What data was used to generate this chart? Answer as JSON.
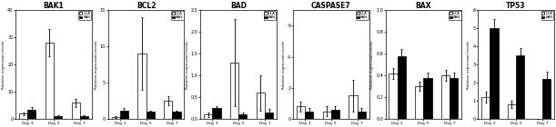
{
  "titles": [
    "BAK1",
    "BCL2",
    "BAD",
    "CASPASE7",
    "BAX",
    "TP53"
  ],
  "x_labels": [
    "Day 3",
    "Day 5",
    "Day 7"
  ],
  "legend_labels": [
    "ULA",
    "BAN"
  ],
  "bar_colors": [
    "white",
    "black"
  ],
  "bar_edgecolor": "black",
  "ylabel": "Relative expression levels",
  "panels": [
    {
      "title": "BAK1",
      "ylim": [
        0,
        40
      ],
      "yticks": [
        0,
        10,
        20,
        30,
        40
      ],
      "ula": [
        2.0,
        28.0,
        6.0
      ],
      "ban": [
        3.5,
        1.0,
        1.0
      ],
      "ula_err": [
        0.5,
        5.0,
        1.5
      ],
      "ban_err": [
        0.8,
        0.3,
        0.3
      ]
    },
    {
      "title": "BCL2",
      "ylim": [
        0,
        15
      ],
      "yticks": [
        0,
        5,
        10,
        15
      ],
      "ula": [
        0.3,
        9.0,
        2.5
      ],
      "ban": [
        1.2,
        1.0,
        1.0
      ],
      "ula_err": [
        0.1,
        5.0,
        0.6
      ],
      "ban_err": [
        0.3,
        0.2,
        0.2
      ]
    },
    {
      "title": "BAD",
      "ylim": [
        0,
        2.5
      ],
      "yticks": [
        0,
        0.5,
        1.0,
        1.5,
        2.0,
        2.5
      ],
      "ula": [
        0.1,
        1.3,
        0.6
      ],
      "ban": [
        0.25,
        0.1,
        0.15
      ],
      "ula_err": [
        0.05,
        1.0,
        0.4
      ],
      "ban_err": [
        0.05,
        0.05,
        0.08
      ]
    },
    {
      "title": "CASPASE7",
      "ylim": [
        0,
        7
      ],
      "yticks": [
        0,
        2,
        4,
        6
      ],
      "ula": [
        0.8,
        0.5,
        1.5
      ],
      "ban": [
        0.5,
        0.6,
        0.5
      ],
      "ula_err": [
        0.3,
        0.3,
        1.0
      ],
      "ban_err": [
        0.2,
        0.2,
        0.2
      ]
    },
    {
      "title": "BAX",
      "ylim": [
        0,
        1.0
      ],
      "yticks": [
        0,
        0.2,
        0.4,
        0.6,
        0.8,
        1.0
      ],
      "ula": [
        0.42,
        0.3,
        0.4
      ],
      "ban": [
        0.58,
        0.38,
        0.38
      ],
      "ula_err": [
        0.05,
        0.04,
        0.05
      ],
      "ban_err": [
        0.06,
        0.05,
        0.05
      ]
    },
    {
      "title": "TP53",
      "ylim": [
        0,
        6
      ],
      "yticks": [
        0,
        1,
        2,
        3,
        4,
        5,
        6
      ],
      "ula": [
        1.2,
        0.8,
        0.0
      ],
      "ban": [
        5.0,
        3.5,
        2.2
      ],
      "ula_err": [
        0.3,
        0.2,
        0.0
      ],
      "ban_err": [
        0.5,
        0.4,
        0.4
      ]
    }
  ]
}
